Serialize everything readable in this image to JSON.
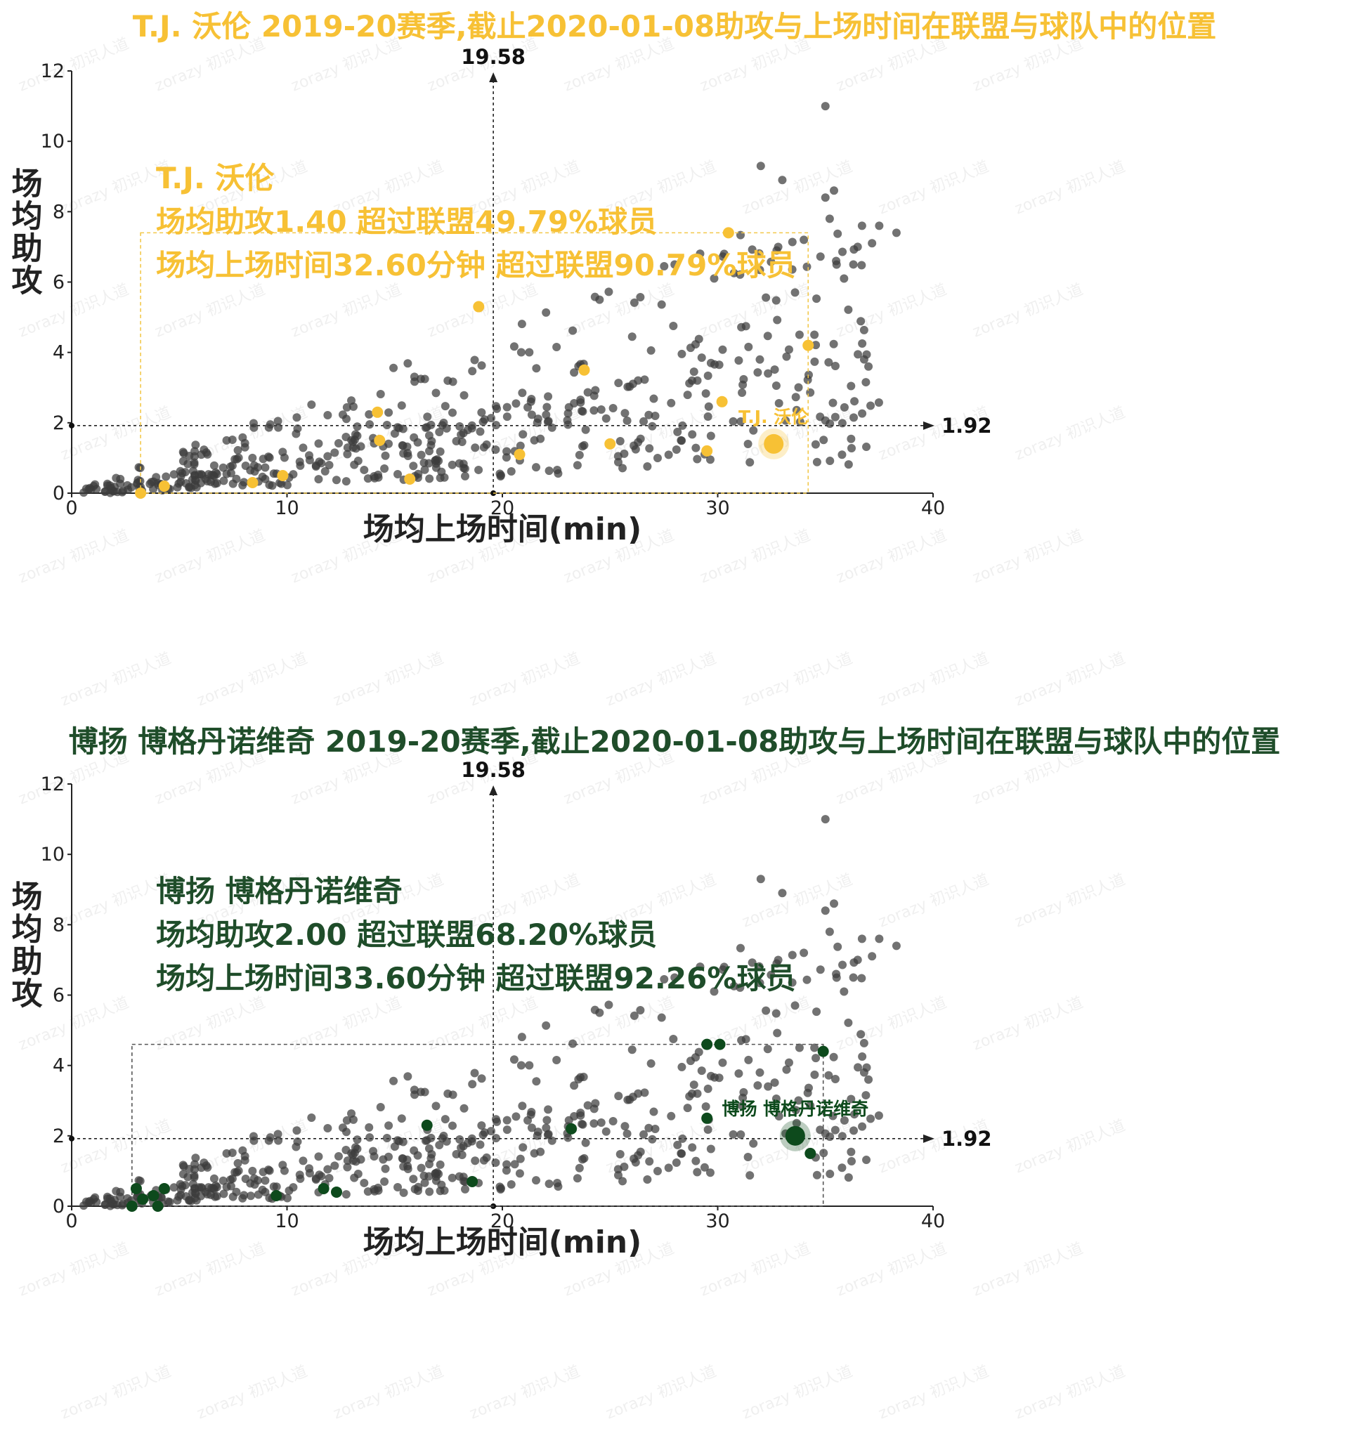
{
  "watermark": "zorazy 初识人道",
  "chart_data": [
    {
      "type": "scatter",
      "title": "T.J. 沃伦 2019-20赛季,截止2020-01-08助攻与上场时间在联盟与球队中的位置",
      "xlabel": "场均上场时间(min)",
      "ylabel": "场均助攻",
      "xlim": [
        0,
        40
      ],
      "ylim": [
        0,
        12
      ],
      "xticks": [
        "0",
        "10",
        "20",
        "30",
        "40"
      ],
      "yticks": [
        "0",
        "2",
        "4",
        "6",
        "8",
        "10",
        "12"
      ],
      "grid": false,
      "ref_x": 19.58,
      "ref_x_label": "19.58",
      "ref_y": 1.92,
      "ref_y_label": "1.92",
      "team_range": {
        "x": [
          3.2,
          34.2
        ],
        "y": [
          0,
          7.4
        ]
      },
      "player": {
        "name": "T.J. 沃伦",
        "x": 32.6,
        "y": 1.4
      },
      "annotation": [
        "T.J. 沃伦",
        "场均助攻1.40 超过联盟49.79%球员",
        "场均上场时间32.60分钟 超过联盟90.79%球员"
      ],
      "colors": {
        "title": "#f7c135",
        "highlight": "#f7c135",
        "league": "#3c3c3c",
        "box": "#f2c84b"
      },
      "team_points": [
        [
          3.2,
          0
        ],
        [
          4.3,
          0.2
        ],
        [
          8.4,
          0.3
        ],
        [
          9.8,
          0.5
        ],
        [
          15.7,
          0.4
        ],
        [
          14.2,
          2.3
        ],
        [
          14.3,
          1.5
        ],
        [
          18.9,
          5.3
        ],
        [
          20.8,
          1.1
        ],
        [
          23.8,
          3.5
        ],
        [
          25.0,
          1.4
        ],
        [
          30.2,
          2.6
        ],
        [
          29.5,
          1.2
        ],
        [
          30.5,
          7.4
        ],
        [
          34.2,
          4.2
        ]
      ]
    },
    {
      "type": "scatter",
      "title": "博扬 博格丹诺维奇 2019-20赛季,截止2020-01-08助攻与上场时间在联盟与球队中的位置",
      "xlabel": "场均上场时间(min)",
      "ylabel": "场均助攻",
      "xlim": [
        0,
        40
      ],
      "ylim": [
        0,
        12
      ],
      "xticks": [
        "0",
        "10",
        "20",
        "30",
        "40"
      ],
      "yticks": [
        "0",
        "2",
        "4",
        "6",
        "8",
        "10",
        "12"
      ],
      "grid": false,
      "ref_x": 19.58,
      "ref_x_label": "19.58",
      "ref_y": 1.92,
      "ref_y_label": "1.92",
      "team_range": {
        "x": [
          2.8,
          34.9
        ],
        "y": [
          0,
          4.6
        ]
      },
      "player": {
        "name": "博扬 博格丹诺维奇",
        "x": 33.6,
        "y": 2.0
      },
      "annotation": [
        "博扬 博格丹诺维奇",
        "场均助攻2.00 超过联盟68.20%球员",
        "场均上场时间33.60分钟 超过联盟92.26%球员"
      ],
      "colors": {
        "title": "#1f4d2a",
        "highlight": "#0d4a1c",
        "league": "#3c3c3c",
        "box": "#555555"
      },
      "team_points": [
        [
          2.8,
          0
        ],
        [
          3.0,
          0.5
        ],
        [
          3.3,
          0.2
        ],
        [
          3.8,
          0.3
        ],
        [
          4.0,
          0
        ],
        [
          4.3,
          0.5
        ],
        [
          9.5,
          0.3
        ],
        [
          11.7,
          0.5
        ],
        [
          12.3,
          0.4
        ],
        [
          16.5,
          2.3
        ],
        [
          18.6,
          0.7
        ],
        [
          23.2,
          2.2
        ],
        [
          29.5,
          4.6
        ],
        [
          30.1,
          4.6
        ],
        [
          29.5,
          2.5
        ],
        [
          34.9,
          4.4
        ],
        [
          34.3,
          1.5
        ]
      ]
    }
  ]
}
